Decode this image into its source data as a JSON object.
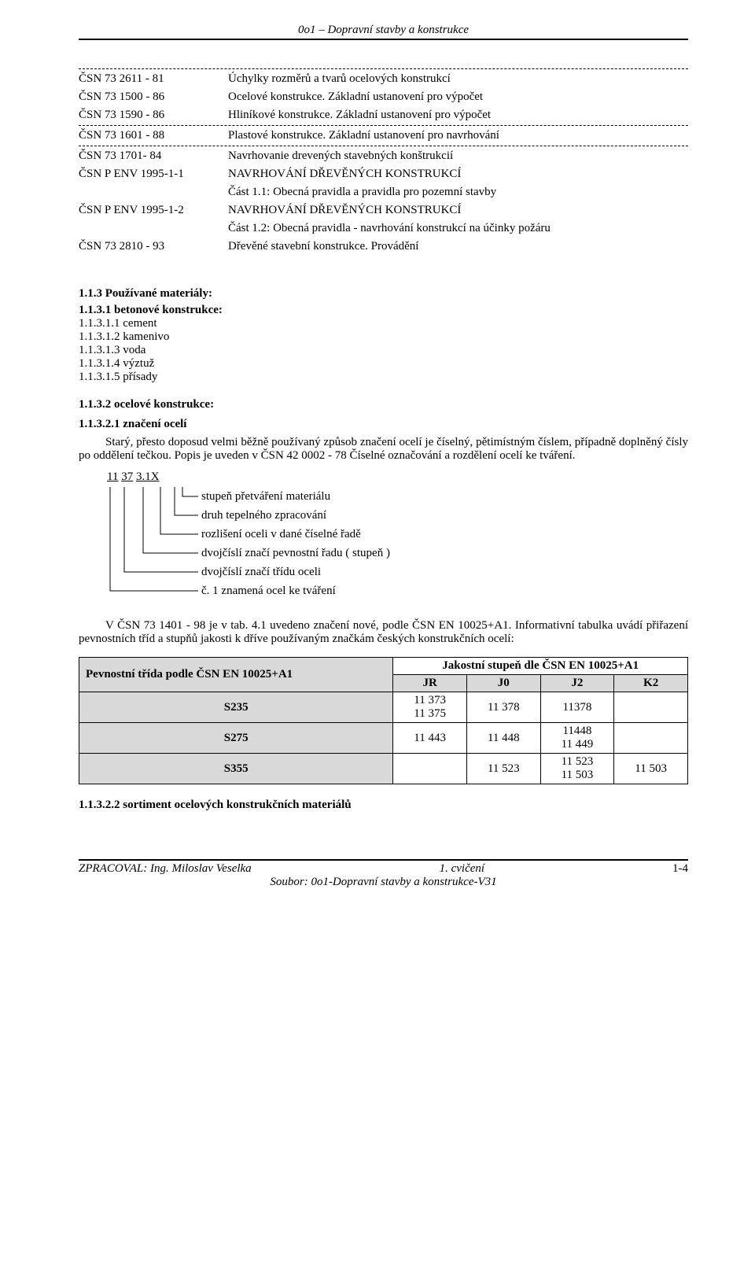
{
  "header": {
    "title": "0o1 – Dopravní stavby a konstrukce"
  },
  "standards": {
    "group1": [
      {
        "code": "ČSN 73 2611 - 81",
        "desc": "Úchylky rozměrů a tvarů ocelových konstrukcí"
      },
      {
        "code": "ČSN 73 1500 - 86",
        "desc": "Ocelové konstrukce. Základní ustanovení pro výpočet"
      },
      {
        "code": "ČSN 73 1590 - 86",
        "desc": "Hliníkové konstrukce. Základní ustanovení pro výpočet"
      }
    ],
    "group2": [
      {
        "code": "ČSN 73 1601 - 88",
        "desc": "Plastové konstrukce. Základní ustanovení pro navrhování"
      }
    ],
    "group3": [
      {
        "code": "ČSN 73 1701- 84",
        "desc": "Navrhovanie drevených stavebných konštrukcií"
      },
      {
        "code": "ČSN P ENV 1995-1-1",
        "desc": "NAVRHOVÁNÍ DŘEVĚNÝCH KONSTRUKCÍ"
      },
      {
        "code": "",
        "desc": "Část 1.1: Obecná pravidla a pravidla pro pozemní stavby"
      },
      {
        "code": "ČSN P ENV 1995-1-2",
        "desc": "NAVRHOVÁNÍ DŘEVĚNÝCH KONSTRUKCÍ"
      },
      {
        "code": "",
        "desc": "Část 1.2: Obecná pravidla - navrhování konstrukcí na účinky požáru"
      },
      {
        "code": "ČSN 73 2810 - 93",
        "desc": "Dřevěné stavební konstrukce. Provádění"
      }
    ]
  },
  "sec113": {
    "title": "1.1.3 Používané materiály:",
    "s1131": {
      "title": "1.1.3.1 betonové konstrukce:",
      "items": [
        "1.1.3.1.1   cement",
        "1.1.3.1.2   kamenivo",
        "1.1.3.1.3   voda",
        "1.1.3.1.4   výztuž",
        "1.1.3.1.5   přísady"
      ]
    },
    "s1132": {
      "title": "1.1.3.2 ocelové konstrukce:",
      "s11321": {
        "title": "1.1.3.2.1 značení ocelí",
        "para1": "Starý, přesto doposud velmi běžně používaný způsob značení ocelí je číselný, pětimístným číslem, případně doplněný čísly po oddělení tečkou. Popis je uveden v ČSN 42 0002 - 78  Číselné označování a rozdělení ocelí ke tváření.",
        "root": {
          "p1": "11",
          "p2": "37",
          "p3": "3.1X"
        },
        "tree": [
          "stupeň přetváření materiálu",
          "druh tepelného zpracování",
          "rozlišení oceli v dané číselné řadě",
          "dvojčíslí značí pevnostní řadu ( stupeň )",
          "dvojčíslí značí třídu oceli",
          "č. 1 znamená ocel ke  tváření"
        ],
        "para2": "V ČSN 73 1401 - 98 je v tab. 4.1 uvedeno značení nové, podle ČSN EN 10025+A1. Informativní tabulka uvádí přiřazení pevnostních tříd a stupňů jakosti k dříve používaným značkám českých konstrukčních ocelí:"
      },
      "s11322": {
        "title": "1.1.3.2.2 sortiment ocelových konstrukčních materiálů"
      }
    }
  },
  "table": {
    "headLeft": "Pevnostní třída podle ČSN EN 10025+A1",
    "headRight": "Jakostní stupeň dle ČSN EN 10025+A1",
    "cols": [
      "JR",
      "J0",
      "J2",
      "K2"
    ],
    "rows": [
      {
        "name": "S235",
        "jr": [
          "11 373",
          "11 375"
        ],
        "j0": [
          "11 378"
        ],
        "j2": [
          "11378"
        ],
        "k2": []
      },
      {
        "name": "S275",
        "jr": [
          "11 443"
        ],
        "j0": [
          "11 448"
        ],
        "j2": [
          "11448",
          "11 449"
        ],
        "k2": []
      },
      {
        "name": "S355",
        "jr": [],
        "j0": [
          "11 523"
        ],
        "j2": [
          "11 523",
          "11 503"
        ],
        "k2": [
          "11 503"
        ]
      }
    ]
  },
  "footer": {
    "left": "ZPRACOVAL: Ing. Miloslav Veselka",
    "center": "1. cvičení",
    "soubor": "Soubor: 0o1-Dopravní stavby a konstrukce-V31",
    "pagenum": "1-4"
  }
}
